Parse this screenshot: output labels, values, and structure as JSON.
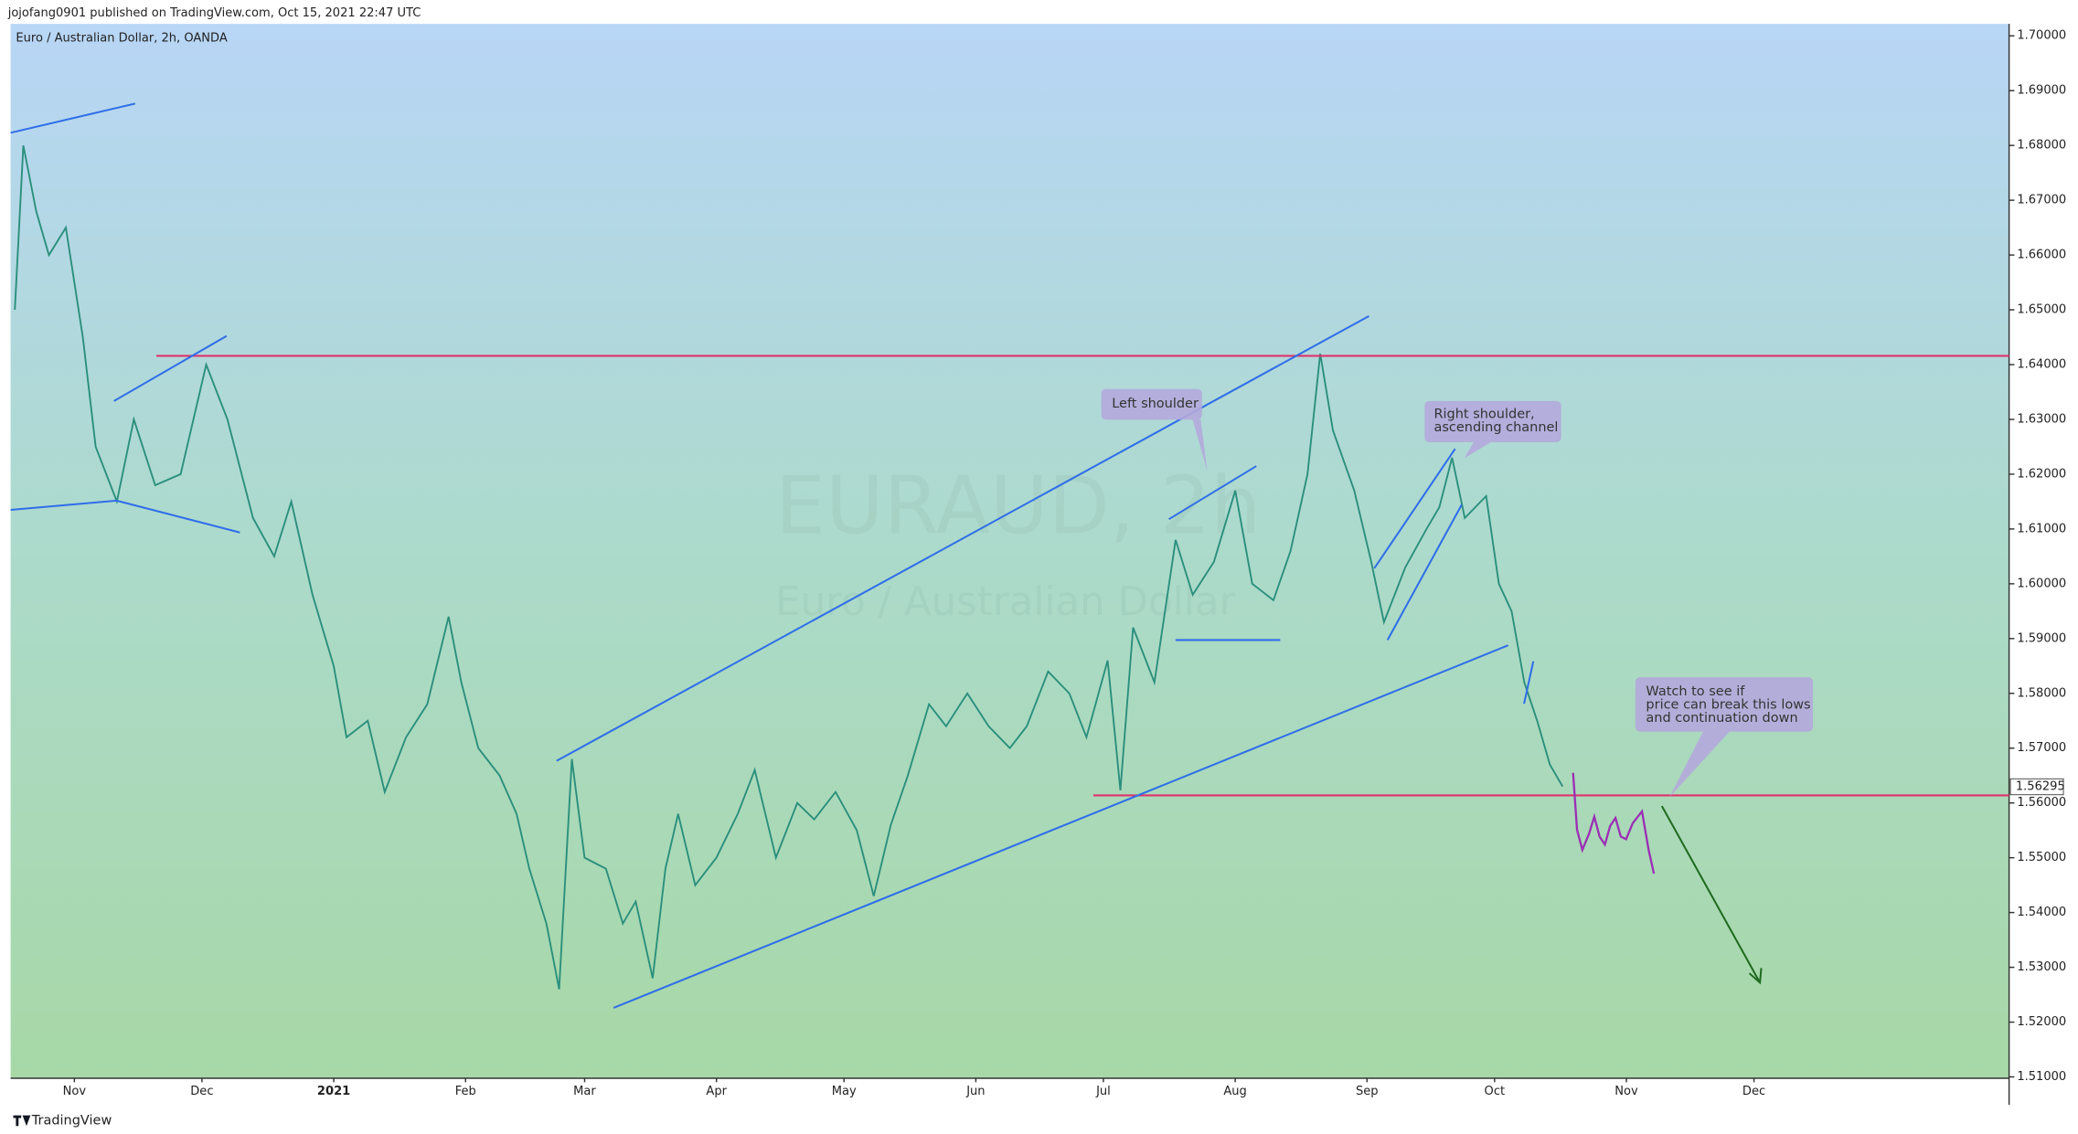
{
  "header": "jojofang0901 published on TradingView.com, Oct 15, 2021 22:47 UTC",
  "footer": "TradingView",
  "chart_data": {
    "type": "line",
    "title": "Euro / Australian Dollar, 2h, OANDA",
    "watermark": [
      "EURAUD, 2h",
      "Euro / Australian Dollar"
    ],
    "color": "#2a8f7c",
    "x": [
      -14,
      -12,
      -9,
      -6,
      -2,
      2,
      5,
      10,
      14,
      19,
      25,
      31,
      36,
      42,
      47,
      51,
      56,
      61,
      64,
      69,
      73,
      78,
      83,
      88,
      91,
      95,
      100,
      104,
      107,
      111,
      114,
      117,
      120,
      125,
      129,
      132,
      136,
      139,
      142,
      146,
      151,
      156,
      160,
      165,
      170,
      174,
      179,
      184,
      188,
      192,
      196,
      201,
      205,
      210,
      215,
      220,
      224,
      229,
      234,
      238,
      243,
      246,
      249,
      254,
      259,
      263,
      268,
      273,
      277,
      282,
      286,
      290,
      293,
      296,
      301,
      305,
      308,
      313,
      318,
      321,
      324,
      327,
      332,
      335,
      338,
      341,
      344,
      347,
      350
    ],
    "values": [
      1.65,
      1.68,
      1.668,
      1.66,
      1.665,
      1.645,
      1.625,
      1.615,
      1.63,
      1.618,
      1.62,
      1.64,
      1.63,
      1.612,
      1.605,
      1.615,
      1.598,
      1.585,
      1.572,
      1.575,
      1.562,
      1.572,
      1.578,
      1.594,
      1.582,
      1.57,
      1.565,
      1.558,
      1.548,
      1.538,
      1.526,
      1.568,
      1.55,
      1.548,
      1.538,
      1.542,
      1.528,
      1.548,
      1.558,
      1.545,
      1.55,
      1.558,
      1.566,
      1.55,
      1.56,
      1.557,
      1.562,
      1.555,
      1.543,
      1.556,
      1.565,
      1.578,
      1.574,
      1.58,
      1.574,
      1.57,
      1.574,
      1.584,
      1.58,
      1.572,
      1.586,
      1.5623,
      1.592,
      1.582,
      1.608,
      1.598,
      1.604,
      1.617,
      1.6,
      1.597,
      1.606,
      1.62,
      1.642,
      1.628,
      1.617,
      1.604,
      1.593,
      1.603,
      1.61,
      1.614,
      1.623,
      1.612,
      1.616,
      1.6,
      1.595,
      1.582,
      1.575,
      1.567,
      1.563
    ],
    "last_value": 1.56295,
    "xlim": [
      -15,
      455
    ],
    "xticks": [
      {
        "value": 0,
        "label": "Nov"
      },
      {
        "value": 30,
        "label": "Dec"
      },
      {
        "value": 61,
        "label": "2021"
      },
      {
        "value": 92,
        "label": "Feb"
      },
      {
        "value": 120,
        "label": "Mar"
      },
      {
        "value": 151,
        "label": "Apr"
      },
      {
        "value": 181,
        "label": "May"
      },
      {
        "value": 212,
        "label": "Jun"
      },
      {
        "value": 242,
        "label": "Jul"
      },
      {
        "value": 273,
        "label": "Aug"
      },
      {
        "value": 304,
        "label": "Sep"
      },
      {
        "value": 334,
        "label": "Oct"
      },
      {
        "value": 365,
        "label": "Nov"
      },
      {
        "value": 395,
        "label": "Dec"
      }
    ],
    "ylim": [
      1.51,
      1.7
    ],
    "yticks": [
      {
        "value": 1.51,
        "label": "1.51000"
      },
      {
        "value": 1.52,
        "label": "1.52000"
      },
      {
        "value": 1.53,
        "label": "1.53000"
      },
      {
        "value": 1.54,
        "label": "1.54000"
      },
      {
        "value": 1.55,
        "label": "1.55000"
      },
      {
        "value": 1.56,
        "label": "1.56000"
      },
      {
        "value": 1.57,
        "label": "1.57000"
      },
      {
        "value": 1.58,
        "label": "1.58000"
      },
      {
        "value": 1.59,
        "label": "1.59000"
      },
      {
        "value": 1.6,
        "label": "1.60000"
      },
      {
        "value": 1.61,
        "label": "1.61000"
      },
      {
        "value": 1.62,
        "label": "1.62000"
      },
      {
        "value": 1.63,
        "label": "1.63000"
      },
      {
        "value": 1.64,
        "label": "1.64000"
      },
      {
        "value": 1.65,
        "label": "1.65000"
      },
      {
        "value": 1.66,
        "label": "1.66000"
      },
      {
        "value": 1.67,
        "label": "1.67000"
      },
      {
        "value": 1.68,
        "label": "1.68000"
      },
      {
        "value": 1.69,
        "label": "1.69000"
      },
      {
        "value": 1.7,
        "label": "1.70000"
      }
    ],
    "grid": false,
    "annotations": [
      {
        "lines": [
          "Left shoulder"
        ]
      },
      {
        "lines": [
          "Right shoulder,",
          "ascending channel"
        ]
      },
      {
        "lines": [
          "Watch to see if",
          "price can break this lows",
          "and continuation down"
        ]
      }
    ]
  }
}
